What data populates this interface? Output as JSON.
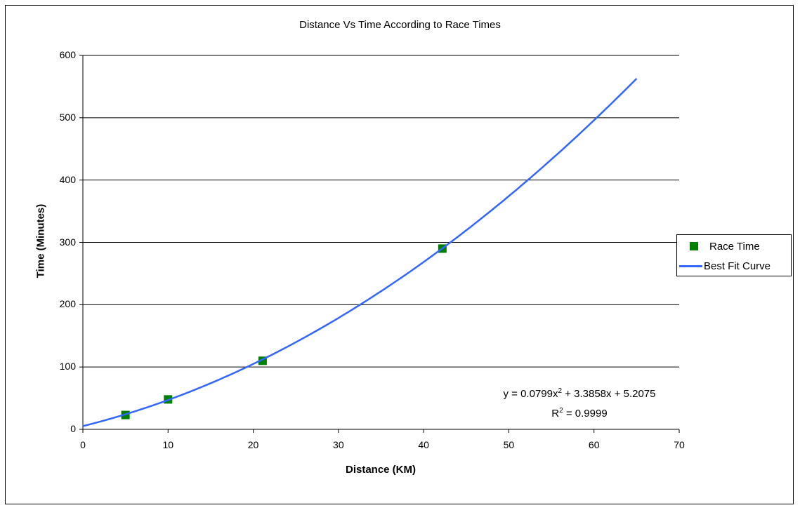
{
  "chart_data": {
    "type": "scatter",
    "title": "Distance Vs Time According to Race Times",
    "xlabel": "Distance (KM)",
    "ylabel": "Time (Minutes)",
    "xlim": [
      0,
      70
    ],
    "ylim": [
      0,
      600
    ],
    "x_ticks": [
      "0",
      "10",
      "20",
      "30",
      "40",
      "50",
      "60",
      "70"
    ],
    "y_ticks": [
      "0",
      "100",
      "200",
      "300",
      "400",
      "500",
      "600"
    ],
    "grid": "horizontal major gridlines",
    "legend_position": "right",
    "series": [
      {
        "name": "Race Time",
        "type": "scatter",
        "marker": "square",
        "color": "#008000",
        "x": [
          5,
          10,
          21.1,
          42.2
        ],
        "y": [
          23,
          48,
          110,
          290
        ]
      },
      {
        "name": "Best Fit Curve",
        "type": "line",
        "color": "#3366ff",
        "equation": "y = 0.0799x^2 + 3.3858x + 5.2075",
        "x_range": [
          0,
          65
        ]
      }
    ],
    "annotations": [
      "y = 0.0799x2 + 3.3858x + 5.2075",
      "R2 = 0.9999"
    ]
  },
  "title": "Distance Vs Time According to Race Times",
  "axes": {
    "xlabel": "Distance (KM)",
    "ylabel": "Time (Minutes)",
    "x_ticks": [
      "0",
      "10",
      "20",
      "30",
      "40",
      "50",
      "60",
      "70"
    ],
    "y_ticks": [
      "0",
      "100",
      "200",
      "300",
      "400",
      "500",
      "600"
    ]
  },
  "legend": {
    "items": [
      {
        "label": "Race Time",
        "color": "#008000"
      },
      {
        "label": "Best Fit Curve",
        "color": "#3366ff"
      }
    ]
  },
  "equation": {
    "prefix": "y = 0.0799x",
    "sup1": "2",
    "suffix": " + 3.3858x  + 5.2075",
    "r_prefix": "R",
    "sup2": "2",
    "r_suffix": " = 0.9999"
  }
}
